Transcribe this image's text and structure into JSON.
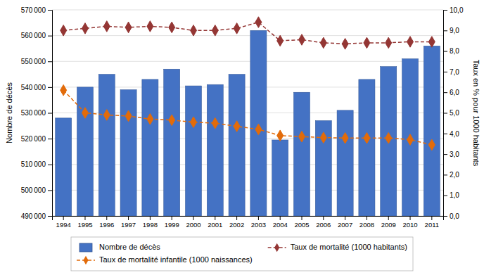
{
  "chart_data": {
    "type": "bar",
    "categories": [
      "1994",
      "1995",
      "1996",
      "1997",
      "1998",
      "1999",
      "2000",
      "2001",
      "2002",
      "2003",
      "2004",
      "2005",
      "2006",
      "2007",
      "2008",
      "2009",
      "2010",
      "2011"
    ],
    "ylabel": "Nombre de décès",
    "y2label": "Taux en % pour 1000 habitants",
    "ylim": [
      490000,
      570000
    ],
    "yticks": [
      {
        "value": 490000,
        "label": "490 000"
      },
      {
        "value": 500000,
        "label": "500 000"
      },
      {
        "value": 510000,
        "label": "510 000"
      },
      {
        "value": 520000,
        "label": "520 000"
      },
      {
        "value": 530000,
        "label": "530 000"
      },
      {
        "value": 540000,
        "label": "540 000"
      },
      {
        "value": 550000,
        "label": "550 000"
      },
      {
        "value": 560000,
        "label": "560 000"
      },
      {
        "value": 570000,
        "label": "570 000"
      }
    ],
    "y2lim": [
      0.0,
      10.0
    ],
    "y2ticks": [
      {
        "value": 0.0,
        "label": "0,0"
      },
      {
        "value": 1.0,
        "label": "1,0"
      },
      {
        "value": 2.0,
        "label": "2,0"
      },
      {
        "value": 3.0,
        "label": "3,0"
      },
      {
        "value": 4.0,
        "label": "4,0"
      },
      {
        "value": 5.0,
        "label": "5,0"
      },
      {
        "value": 6.0,
        "label": "6,0"
      },
      {
        "value": 7.0,
        "label": "7,0"
      },
      {
        "value": 8.0,
        "label": "8,0"
      },
      {
        "value": 9.0,
        "label": "9,0"
      },
      {
        "value": 10.0,
        "label": "10,0"
      }
    ],
    "grid": true,
    "legend": "bottom",
    "series": [
      {
        "name": "Nombre de décès",
        "type": "bar",
        "color": "#4472C4",
        "values": [
          528000,
          540000,
          545000,
          539000,
          543000,
          547000,
          540500,
          541000,
          545000,
          562000,
          519500,
          538000,
          527000,
          531000,
          543000,
          548000,
          551000,
          556000
        ]
      },
      {
        "name": "Taux de mortalité (1000 habitants)",
        "type": "line",
        "axis": "y2",
        "color": "#943634",
        "marker": "diamond",
        "line_style": "dashed",
        "values": [
          9.0,
          9.1,
          9.2,
          9.15,
          9.2,
          9.15,
          9.0,
          9.0,
          9.1,
          9.4,
          8.5,
          8.55,
          8.4,
          8.35,
          8.4,
          8.4,
          8.45,
          8.45
        ]
      },
      {
        "name": "Taux de mortalité infantile (1000 naissances)",
        "type": "line",
        "axis": "y2",
        "color": "#E26B0A",
        "marker": "diamond",
        "line_style": "dashed",
        "values": [
          6.1,
          5.0,
          4.9,
          4.85,
          4.7,
          4.65,
          4.55,
          4.5,
          4.35,
          4.2,
          3.9,
          3.85,
          3.8,
          3.78,
          3.78,
          3.78,
          3.7,
          3.45
        ]
      }
    ]
  }
}
